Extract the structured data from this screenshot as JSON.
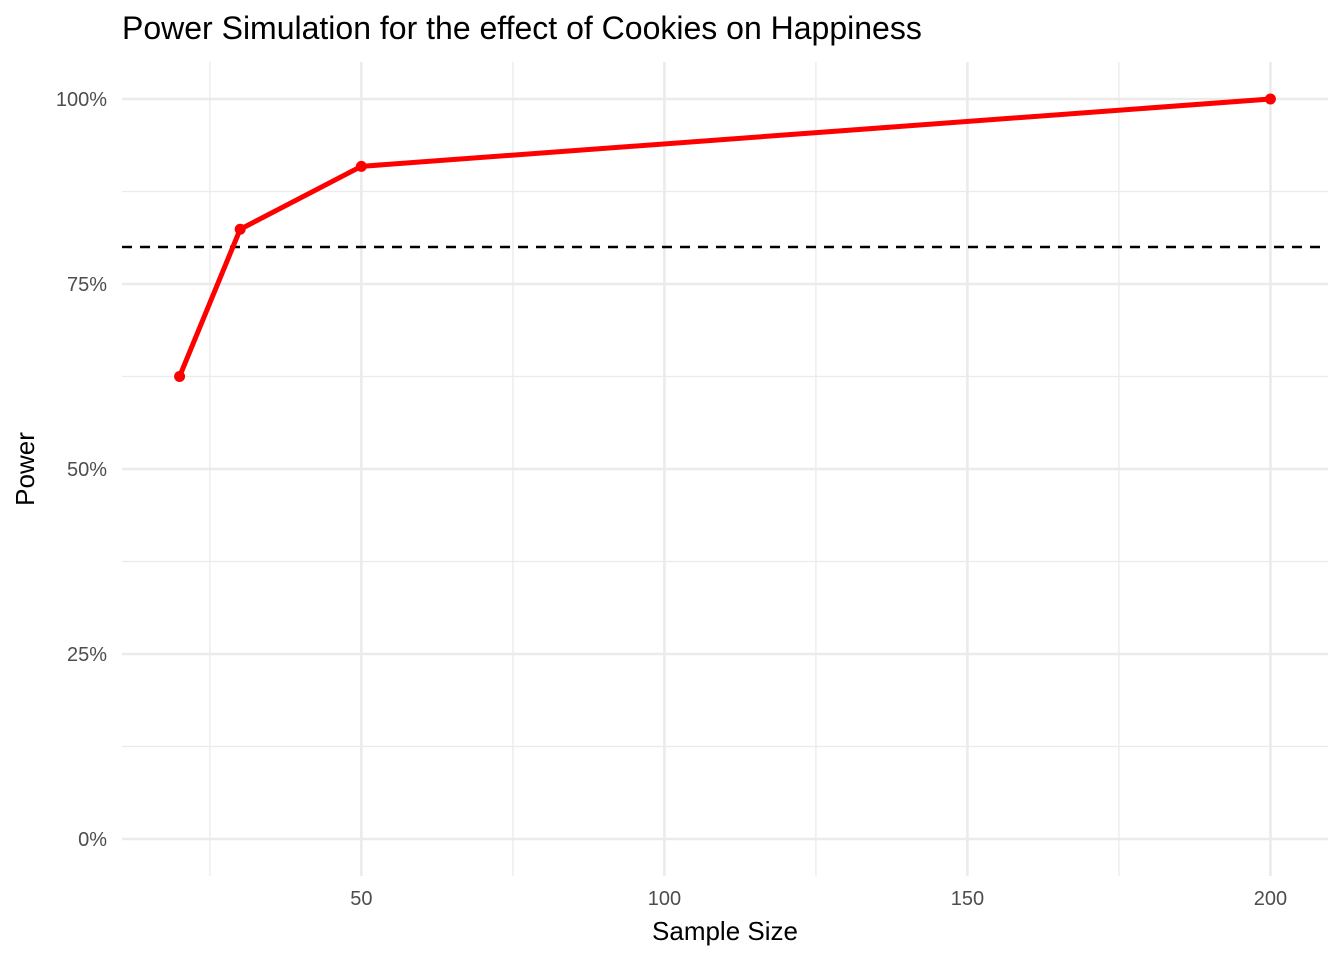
{
  "chart_data": {
    "type": "line",
    "title": "Power Simulation for the effect of Cookies on Happiness",
    "xlabel": "Sample Size",
    "ylabel": "Power",
    "xlim": [
      10.5,
      209.5
    ],
    "ylim": [
      -0.05,
      1.05
    ],
    "x_ticks": [
      50,
      100,
      150,
      200
    ],
    "x_tick_labels": [
      "50",
      "100",
      "150",
      "200"
    ],
    "y_ticks": [
      0,
      0.25,
      0.5,
      0.75,
      1.0
    ],
    "y_tick_labels": [
      "0%",
      "25%",
      "50%",
      "75%",
      "100%"
    ],
    "grid": true,
    "series": [
      {
        "x": [
          20,
          30,
          50,
          200
        ],
        "y": [
          0.625,
          0.824,
          0.909,
          1.0
        ],
        "color": "#ff0000"
      }
    ],
    "reference_line": {
      "orientation": "horizontal",
      "y": 0.8,
      "style": "dashed",
      "color": "#000000"
    }
  }
}
